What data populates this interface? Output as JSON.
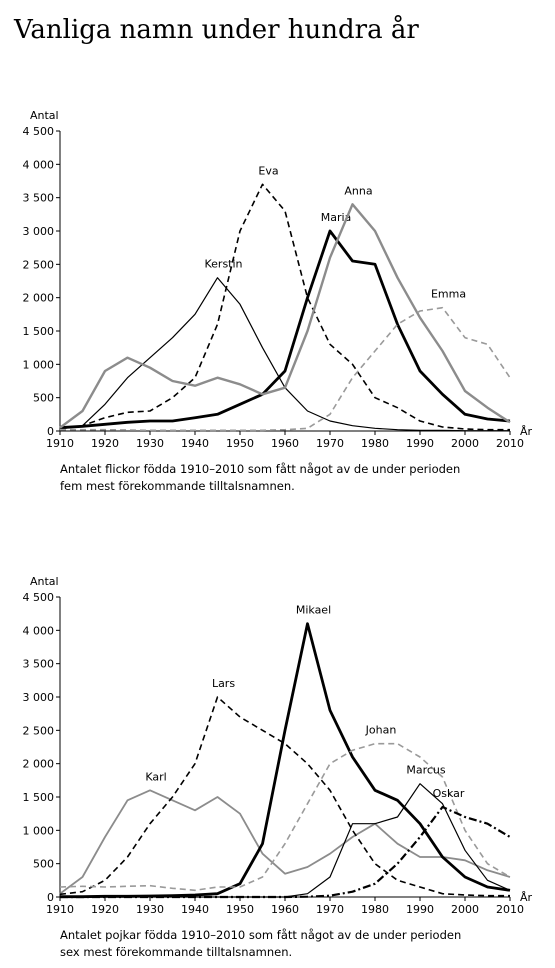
{
  "title": "Vanliga namn under hundra år",
  "chart_data": [
    {
      "type": "line",
      "ylabel": "Antal",
      "xlabel": "År",
      "caption": [
        "Antalet flickor födda 1910–2010 som fått något av de under perioden",
        "fem mest förekommande tilltalsnamnen."
      ],
      "x": [
        1910,
        1915,
        1920,
        1925,
        1930,
        1935,
        1940,
        1945,
        1950,
        1955,
        1960,
        1965,
        1970,
        1975,
        1980,
        1985,
        1990,
        1995,
        2000,
        2005,
        2010
      ],
      "xlim": [
        1910,
        2010
      ],
      "xticks": [
        1910,
        1920,
        1930,
        1940,
        1950,
        1960,
        1970,
        1980,
        1990,
        2000,
        2010
      ],
      "ylim": [
        0,
        4500
      ],
      "yticks": [
        0,
        500,
        {
          "value": 1000,
          "label": "1 000"
        },
        {
          "value": 1500,
          "label": "1 500"
        },
        {
          "value": 2000,
          "label": "2 000"
        },
        {
          "value": 2500,
          "label": "2 500"
        },
        {
          "value": 3000,
          "label": "3 000"
        },
        {
          "value": 3500,
          "label": "3 500"
        },
        {
          "value": 4000,
          "label": "4 000"
        },
        {
          "value": 4500,
          "label": "4 500"
        }
      ],
      "series": [
        {
          "name": "Kerstin",
          "color": "#000000",
          "dash": "solid",
          "width": 1.2,
          "values": [
            30,
            80,
            400,
            800,
            1100,
            1400,
            1750,
            2300,
            1900,
            1250,
            650,
            300,
            150,
            80,
            40,
            20,
            10,
            10,
            5,
            5,
            5
          ]
        },
        {
          "name": "Eva",
          "color": "#000000",
          "dash": "dashed",
          "width": 1.6,
          "values": [
            30,
            80,
            200,
            280,
            300,
            500,
            800,
            1600,
            3000,
            3700,
            3300,
            2000,
            1300,
            1000,
            500,
            350,
            150,
            60,
            30,
            20,
            20
          ]
        },
        {
          "name": "Maria",
          "color": "#000000",
          "dash": "solid",
          "width": 2.8,
          "values": [
            50,
            70,
            100,
            130,
            150,
            150,
            200,
            250,
            400,
            550,
            900,
            2000,
            3000,
            2550,
            2500,
            1600,
            900,
            550,
            250,
            180,
            150
          ]
        },
        {
          "name": "Anna",
          "color": "#8c8c8c",
          "dash": "solid",
          "width": 2.4,
          "values": [
            50,
            300,
            900,
            1100,
            950,
            750,
            680,
            800,
            700,
            550,
            650,
            1500,
            2600,
            3400,
            3000,
            2300,
            1700,
            1200,
            600,
            350,
            130
          ]
        },
        {
          "name": "Emma",
          "color": "#9a9a9a",
          "dash": "dashed",
          "width": 1.6,
          "values": [
            20,
            20,
            20,
            15,
            10,
            10,
            10,
            10,
            10,
            10,
            20,
            40,
            250,
            800,
            1200,
            1600,
            1800,
            1850,
            1400,
            1300,
            800
          ]
        }
      ]
    },
    {
      "type": "line",
      "ylabel": "Antal",
      "xlabel": "År",
      "caption": [
        "Antalet pojkar födda 1910–2010 som fått något av de under perioden",
        "sex mest förekommande tilltalsnamnen."
      ],
      "x": [
        1910,
        1915,
        1920,
        1925,
        1930,
        1935,
        1940,
        1945,
        1950,
        1955,
        1960,
        1965,
        1970,
        1975,
        1980,
        1985,
        1990,
        1995,
        2000,
        2005,
        2010
      ],
      "xlim": [
        1910,
        2010
      ],
      "xticks": [
        1910,
        1920,
        1930,
        1940,
        1950,
        1960,
        1970,
        1980,
        1990,
        2000,
        2010
      ],
      "ylim": [
        0,
        4500
      ],
      "yticks": [
        0,
        500,
        {
          "value": 1000,
          "label": "1 000"
        },
        {
          "value": 1500,
          "label": "1 500"
        },
        {
          "value": 2000,
          "label": "2 000"
        },
        {
          "value": 2500,
          "label": "2 500"
        },
        {
          "value": 3000,
          "label": "3 000"
        },
        {
          "value": 3500,
          "label": "3 500"
        },
        {
          "value": 4000,
          "label": "4 000"
        },
        {
          "value": 4500,
          "label": "4 500"
        }
      ],
      "series": [
        {
          "name": "Karl",
          "color": "#8c8c8c",
          "dash": "solid",
          "width": 1.8,
          "values": [
            50,
            300,
            900,
            1450,
            1600,
            1450,
            1300,
            1500,
            1250,
            650,
            350,
            450,
            650,
            900,
            1100,
            800,
            600,
            600,
            550,
            400,
            300
          ]
        },
        {
          "name": "Lars",
          "color": "#000000",
          "dash": "dashed",
          "width": 1.6,
          "values": [
            40,
            80,
            250,
            600,
            1100,
            1500,
            2000,
            3000,
            2700,
            2500,
            2300,
            2000,
            1600,
            1000,
            500,
            250,
            150,
            50,
            30,
            20,
            20
          ]
        },
        {
          "name": "Mikael",
          "color": "#000000",
          "dash": "solid",
          "width": 2.8,
          "values": [
            5,
            5,
            10,
            10,
            15,
            20,
            30,
            50,
            200,
            800,
            2500,
            4100,
            2800,
            2100,
            1600,
            1450,
            1100,
            600,
            300,
            150,
            100
          ]
        },
        {
          "name": "Johan",
          "color": "#9a9a9a",
          "dash": "dashed",
          "width": 1.6,
          "values": [
            150,
            160,
            150,
            160,
            170,
            130,
            100,
            150,
            150,
            300,
            800,
            1400,
            2000,
            2200,
            2300,
            2300,
            2100,
            1800,
            1000,
            500,
            300
          ]
        },
        {
          "name": "Marcus",
          "color": "#000000",
          "dash": "solid",
          "width": 1.2,
          "values": [
            0,
            0,
            0,
            0,
            0,
            0,
            0,
            0,
            0,
            0,
            0,
            50,
            300,
            1100,
            1100,
            1200,
            1700,
            1400,
            700,
            250,
            100
          ]
        },
        {
          "name": "Oskar",
          "color": "#000000",
          "dash": "dashdot",
          "width": 2.2,
          "values": [
            0,
            0,
            0,
            0,
            0,
            0,
            0,
            0,
            0,
            0,
            0,
            5,
            20,
            80,
            200,
            500,
            900,
            1350,
            1200,
            1100,
            900
          ]
        }
      ]
    }
  ]
}
